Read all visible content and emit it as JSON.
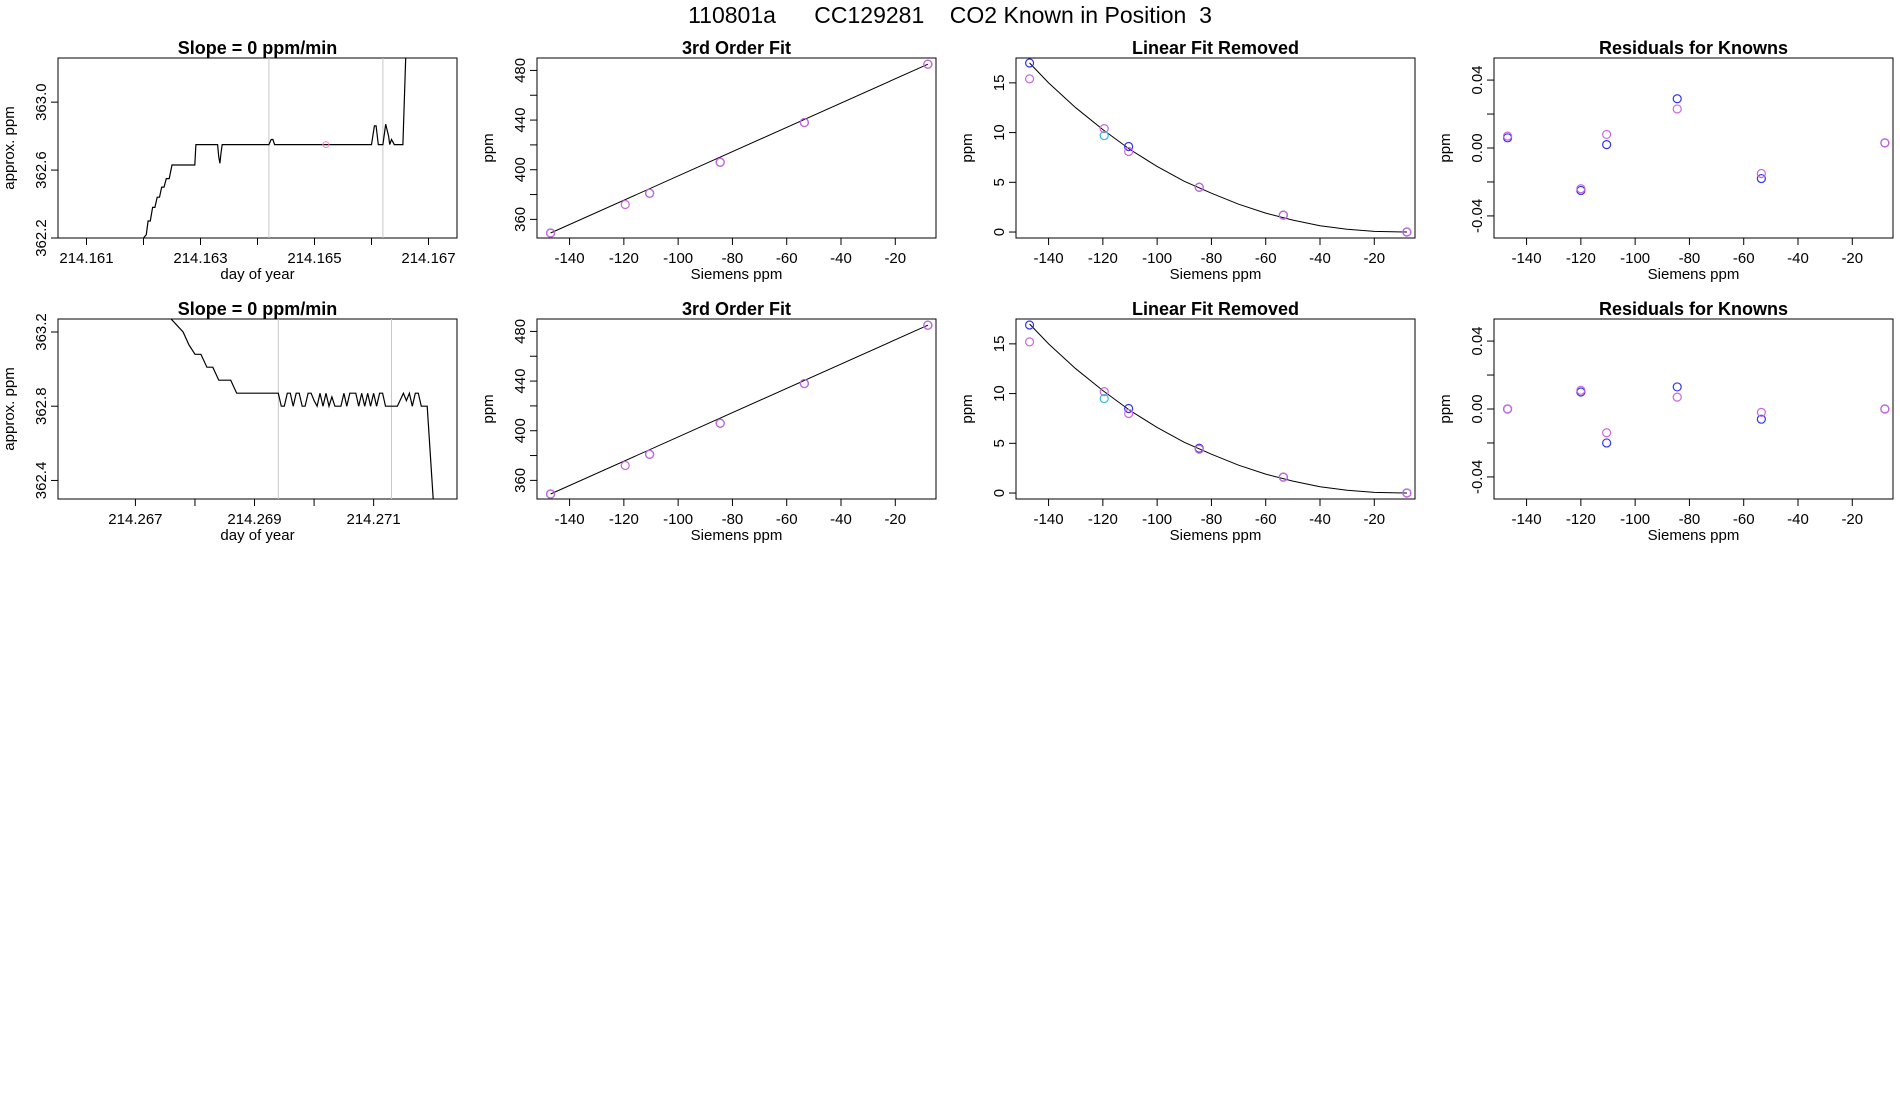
{
  "page": {
    "title": "110801a      CC129281    CO2 Known in Position  3"
  },
  "chart_data": [
    {
      "type": "line",
      "row": 0,
      "col": 0,
      "title": "Slope =  0  ppm/min",
      "xlabel": "day of year",
      "ylabel": "approx. ppm",
      "xlim": [
        214.1605,
        214.1675
      ],
      "ylim": [
        362.2,
        363.26
      ],
      "xticks": [
        214.161,
        214.162,
        214.163,
        214.164,
        214.165,
        214.166,
        214.167
      ],
      "xticklabels": [
        "214.161",
        "",
        "214.163",
        "",
        "214.165",
        "",
        "214.167"
      ],
      "yticks": [
        362.2,
        362.6,
        363.0
      ],
      "yticklabels": [
        "362.2",
        "362.6",
        "363.0"
      ],
      "vlines": [
        214.1642,
        214.1662
      ],
      "series": [
        {
          "name": "trace",
          "color": "#000000",
          "x": [
            214.162,
            214.16205,
            214.16208,
            214.16212,
            214.16216,
            214.1622,
            214.16224,
            214.16228,
            214.16232,
            214.16236,
            214.1624,
            214.16245,
            214.1625,
            214.16255,
            214.1626,
            214.1627,
            214.1629,
            214.16292,
            214.16295,
            214.163,
            214.1633,
            214.16332,
            214.16334,
            214.16336,
            214.16338,
            214.1634,
            214.1638,
            214.1642,
            214.16424,
            214.16427,
            214.1643,
            214.1649,
            214.1655,
            214.166,
            214.16605,
            214.16608,
            214.16612,
            214.16616,
            214.1662,
            214.16625,
            214.1663,
            214.16632,
            214.16635,
            214.1664,
            214.1665,
            214.16655,
            214.1666
          ],
          "y": [
            362.2,
            362.22,
            362.3,
            362.3,
            362.38,
            362.38,
            362.44,
            362.44,
            362.5,
            362.5,
            362.55,
            362.55,
            362.63,
            362.63,
            362.63,
            362.63,
            362.63,
            362.75,
            362.75,
            362.75,
            362.75,
            362.68,
            362.64,
            362.7,
            362.75,
            362.75,
            362.75,
            362.75,
            362.78,
            362.78,
            362.75,
            362.75,
            362.75,
            362.75,
            362.86,
            362.86,
            362.75,
            362.75,
            362.75,
            362.87,
            362.8,
            362.75,
            362.78,
            362.75,
            362.75,
            362.75,
            363.26
          ]
        }
      ],
      "markers": [
        {
          "x": 214.1652,
          "y": 362.75,
          "color": "#ff88cc"
        }
      ]
    },
    {
      "type": "scatter",
      "row": 0,
      "col": 1,
      "title": "3rd Order Fit",
      "xlabel": "Siemens ppm",
      "ylabel": "ppm",
      "xlim": [
        -152,
        -5
      ],
      "ylim": [
        345,
        490
      ],
      "xticks": [
        -140,
        -120,
        -100,
        -80,
        -60,
        -40,
        -20
      ],
      "xticklabels": [
        "-140",
        "-120",
        "-100",
        "-80",
        "-60",
        "-40",
        "-20"
      ],
      "yticks": [
        360,
        380,
        400,
        420,
        440,
        460,
        480
      ],
      "yticklabels": [
        "360",
        "",
        "400",
        "",
        "440",
        "",
        "480"
      ],
      "curve": {
        "color": "#000000",
        "x": [
          -147,
          -8
        ],
        "y": [
          349,
          485
        ]
      },
      "series": [
        {
          "name": "run A",
          "color": "#3333ee",
          "x": [
            -147,
            -110.5,
            -84.5,
            -53.5,
            -8
          ],
          "y": [
            349,
            381,
            406,
            438,
            485
          ]
        },
        {
          "name": "run B",
          "color": "#cc66dd",
          "x": [
            -147,
            -119.5,
            -110.5,
            -84.5,
            -53.5,
            -8
          ],
          "y": [
            349,
            372,
            381,
            406,
            438,
            485
          ]
        }
      ]
    },
    {
      "type": "scatter",
      "row": 0,
      "col": 2,
      "title": "Linear Fit Removed",
      "xlabel": "Siemens ppm",
      "ylabel": "ppm",
      "xlim": [
        -152,
        -5
      ],
      "ylim": [
        -0.6,
        17.5
      ],
      "xticks": [
        -140,
        -120,
        -100,
        -80,
        -60,
        -40,
        -20
      ],
      "xticklabels": [
        "-140",
        "-120",
        "-100",
        "-80",
        "-60",
        "-40",
        "-20"
      ],
      "yticks": [
        0,
        5,
        10,
        15
      ],
      "yticklabels": [
        "0",
        "5",
        "10",
        "15"
      ],
      "curve": {
        "color": "#000000",
        "x": [
          -147,
          -140,
          -130,
          -120,
          -110,
          -100,
          -90,
          -80,
          -70,
          -60,
          -50,
          -40,
          -30,
          -20,
          -8
        ],
        "y": [
          17.0,
          15.0,
          12.5,
          10.3,
          8.3,
          6.6,
          5.1,
          3.9,
          2.8,
          1.9,
          1.2,
          0.64,
          0.27,
          0.06,
          0.0
        ]
      },
      "series": [
        {
          "name": "run A",
          "color": "#3333ee",
          "x": [
            -147,
            -110.5,
            -84.5,
            -53.5,
            -8
          ],
          "y": [
            17.0,
            8.6,
            4.5,
            1.7,
            0.0
          ]
        },
        {
          "name": "run B",
          "color": "#cc66dd",
          "x": [
            -147,
            -119.5,
            -110.5,
            -84.5,
            -53.5,
            -8
          ],
          "y": [
            15.4,
            10.4,
            8.1,
            4.5,
            1.7,
            0.0
          ]
        },
        {
          "name": "run C",
          "color": "#33bbdd",
          "x": [
            -119.5
          ],
          "y": [
            9.7
          ]
        }
      ]
    },
    {
      "type": "scatter",
      "row": 0,
      "col": 3,
      "title": "Residuals for Knowns",
      "xlabel": "Siemens ppm",
      "ylabel": "ppm",
      "xlim": [
        -152,
        -5
      ],
      "ylim": [
        -0.053,
        0.053
      ],
      "xticks": [
        -140,
        -120,
        -100,
        -80,
        -60,
        -40,
        -20
      ],
      "xticklabels": [
        "-140",
        "-120",
        "-100",
        "-80",
        "-60",
        "-40",
        "-20"
      ],
      "yticks": [
        -0.04,
        -0.02,
        0.0,
        0.02,
        0.04
      ],
      "yticklabels": [
        "-0.04",
        "",
        "0.00",
        "",
        "0.04"
      ],
      "series": [
        {
          "name": "run A",
          "color": "#3333ee",
          "x": [
            -147,
            -120,
            -110.5,
            -84.5,
            -53.5,
            -8
          ],
          "y": [
            0.006,
            -0.025,
            0.002,
            0.029,
            -0.018,
            0.003
          ]
        },
        {
          "name": "run B",
          "color": "#cc66dd",
          "x": [
            -147,
            -120,
            -110.5,
            -84.5,
            -53.5,
            -8
          ],
          "y": [
            0.007,
            -0.024,
            0.008,
            0.023,
            -0.015,
            0.003
          ]
        }
      ]
    },
    {
      "type": "line",
      "row": 1,
      "col": 0,
      "title": "Slope =  0  ppm/min",
      "xlabel": "day of year",
      "ylabel": "approx. ppm",
      "xlim": [
        214.2657,
        214.2724
      ],
      "ylim": [
        362.3,
        363.27
      ],
      "xticks": [
        214.267,
        214.268,
        214.269,
        214.27,
        214.271
      ],
      "xticklabels": [
        "214.267",
        "",
        "214.269",
        "",
        "214.271"
      ],
      "yticks": [
        362.4,
        362.8,
        363.2
      ],
      "yticklabels": [
        "362.4",
        "362.8",
        "363.2"
      ],
      "vlines": [
        214.2694,
        214.2713
      ],
      "series": [
        {
          "name": "trace",
          "color": "#000000",
          "x": [
            214.2676,
            214.2678,
            214.2679,
            214.268,
            214.2681,
            214.2682,
            214.2683,
            214.2684,
            214.26845,
            214.2685,
            214.2686,
            214.2687,
            214.2688,
            214.26885,
            214.2689,
            214.2692,
            214.2693,
            214.2694,
            214.26945,
            214.2695,
            214.26955,
            214.2696,
            214.26965,
            214.2697,
            214.26975,
            214.2698,
            214.26985,
            214.2699,
            214.26995,
            214.27,
            214.27005,
            214.2701,
            214.27015,
            214.2702,
            214.27025,
            214.2703,
            214.27035,
            214.2704,
            214.27045,
            214.2705,
            214.27055,
            214.2706,
            214.27065,
            214.2707,
            214.27075,
            214.2708,
            214.27085,
            214.2709,
            214.27095,
            214.271,
            214.27105,
            214.2711,
            214.27115,
            214.2712,
            214.27125,
            214.2713,
            214.2714,
            214.2715,
            214.27155,
            214.2716,
            214.27165,
            214.2717,
            214.27175,
            214.2718,
            214.2719,
            214.272
          ],
          "y": [
            363.27,
            363.2,
            363.13,
            363.08,
            363.08,
            363.01,
            363.01,
            362.94,
            362.94,
            362.94,
            362.94,
            362.87,
            362.87,
            362.87,
            362.87,
            362.87,
            362.87,
            362.87,
            362.8,
            362.8,
            362.87,
            362.87,
            362.8,
            362.87,
            362.87,
            362.8,
            362.8,
            362.87,
            362.87,
            362.83,
            362.8,
            362.87,
            362.8,
            362.87,
            362.8,
            362.85,
            362.8,
            362.8,
            362.8,
            362.87,
            362.8,
            362.87,
            362.87,
            362.87,
            362.8,
            362.87,
            362.8,
            362.87,
            362.8,
            362.87,
            362.8,
            362.87,
            362.87,
            362.8,
            362.8,
            362.8,
            362.8,
            362.87,
            362.83,
            362.87,
            362.8,
            362.87,
            362.87,
            362.8,
            362.8,
            362.3
          ]
        }
      ]
    },
    {
      "type": "scatter",
      "row": 1,
      "col": 1,
      "title": "3rd Order Fit",
      "xlabel": "Siemens ppm",
      "ylabel": "ppm",
      "xlim": [
        -152,
        -5
      ],
      "ylim": [
        345,
        490
      ],
      "xticks": [
        -140,
        -120,
        -100,
        -80,
        -60,
        -40,
        -20
      ],
      "xticklabels": [
        "-140",
        "-120",
        "-100",
        "-80",
        "-60",
        "-40",
        "-20"
      ],
      "yticks": [
        360,
        380,
        400,
        420,
        440,
        460,
        480
      ],
      "yticklabels": [
        "360",
        "",
        "400",
        "",
        "440",
        "",
        "480"
      ],
      "curve": {
        "color": "#000000",
        "x": [
          -147,
          -8
        ],
        "y": [
          349,
          485
        ]
      },
      "series": [
        {
          "name": "run A",
          "color": "#3333ee",
          "x": [
            -147,
            -110.5,
            -84.5,
            -53.5,
            -8
          ],
          "y": [
            349,
            381,
            406,
            438,
            485
          ]
        },
        {
          "name": "run B",
          "color": "#cc66dd",
          "x": [
            -147,
            -119.5,
            -110.5,
            -84.5,
            -53.5,
            -8
          ],
          "y": [
            349,
            372,
            381,
            406,
            438,
            485
          ]
        }
      ]
    },
    {
      "type": "scatter",
      "row": 1,
      "col": 2,
      "title": "Linear Fit Removed",
      "xlabel": "Siemens ppm",
      "ylabel": "ppm",
      "xlim": [
        -152,
        -5
      ],
      "ylim": [
        -0.6,
        17.5
      ],
      "xticks": [
        -140,
        -120,
        -100,
        -80,
        -60,
        -40,
        -20
      ],
      "xticklabels": [
        "-140",
        "-120",
        "-100",
        "-80",
        "-60",
        "-40",
        "-20"
      ],
      "yticks": [
        0,
        5,
        10,
        15
      ],
      "yticklabels": [
        "0",
        "5",
        "10",
        "15"
      ],
      "curve": {
        "color": "#000000",
        "x": [
          -147,
          -140,
          -130,
          -120,
          -110,
          -100,
          -90,
          -80,
          -70,
          -60,
          -50,
          -40,
          -30,
          -20,
          -8
        ],
        "y": [
          17.0,
          15.0,
          12.5,
          10.3,
          8.3,
          6.6,
          5.1,
          3.9,
          2.8,
          1.9,
          1.2,
          0.64,
          0.27,
          0.06,
          0.0
        ]
      },
      "series": [
        {
          "name": "run A",
          "color": "#3333ee",
          "x": [
            -147,
            -110.5,
            -84.5,
            -53.5,
            -8
          ],
          "y": [
            16.9,
            8.5,
            4.5,
            1.6,
            0.0
          ]
        },
        {
          "name": "run B",
          "color": "#cc66dd",
          "x": [
            -147,
            -119.5,
            -110.5,
            -84.5,
            -53.5,
            -8
          ],
          "y": [
            15.2,
            10.2,
            8.0,
            4.4,
            1.6,
            0.0
          ]
        },
        {
          "name": "run C",
          "color": "#33bbdd",
          "x": [
            -119.5
          ],
          "y": [
            9.5
          ]
        }
      ]
    },
    {
      "type": "scatter",
      "row": 1,
      "col": 3,
      "title": "Residuals for Knowns",
      "xlabel": "Siemens ppm",
      "ylabel": "ppm",
      "xlim": [
        -152,
        -5
      ],
      "ylim": [
        -0.053,
        0.053
      ],
      "xticks": [
        -140,
        -120,
        -100,
        -80,
        -60,
        -40,
        -20
      ],
      "xticklabels": [
        "-140",
        "-120",
        "-100",
        "-80",
        "-60",
        "-40",
        "-20"
      ],
      "yticks": [
        -0.04,
        -0.02,
        0.0,
        0.02,
        0.04
      ],
      "yticklabels": [
        "-0.04",
        "",
        "0.00",
        "",
        "0.04"
      ],
      "series": [
        {
          "name": "run A",
          "color": "#3333ee",
          "x": [
            -147,
            -120,
            -110.5,
            -84.5,
            -53.5,
            -8
          ],
          "y": [
            0.0,
            0.01,
            -0.02,
            0.013,
            -0.006,
            0.0
          ]
        },
        {
          "name": "run B",
          "color": "#cc66dd",
          "x": [
            -147,
            -120,
            -110.5,
            -84.5,
            -53.5,
            -8
          ],
          "y": [
            0.0,
            0.011,
            -0.014,
            0.007,
            -0.002,
            0.0
          ]
        }
      ]
    }
  ]
}
